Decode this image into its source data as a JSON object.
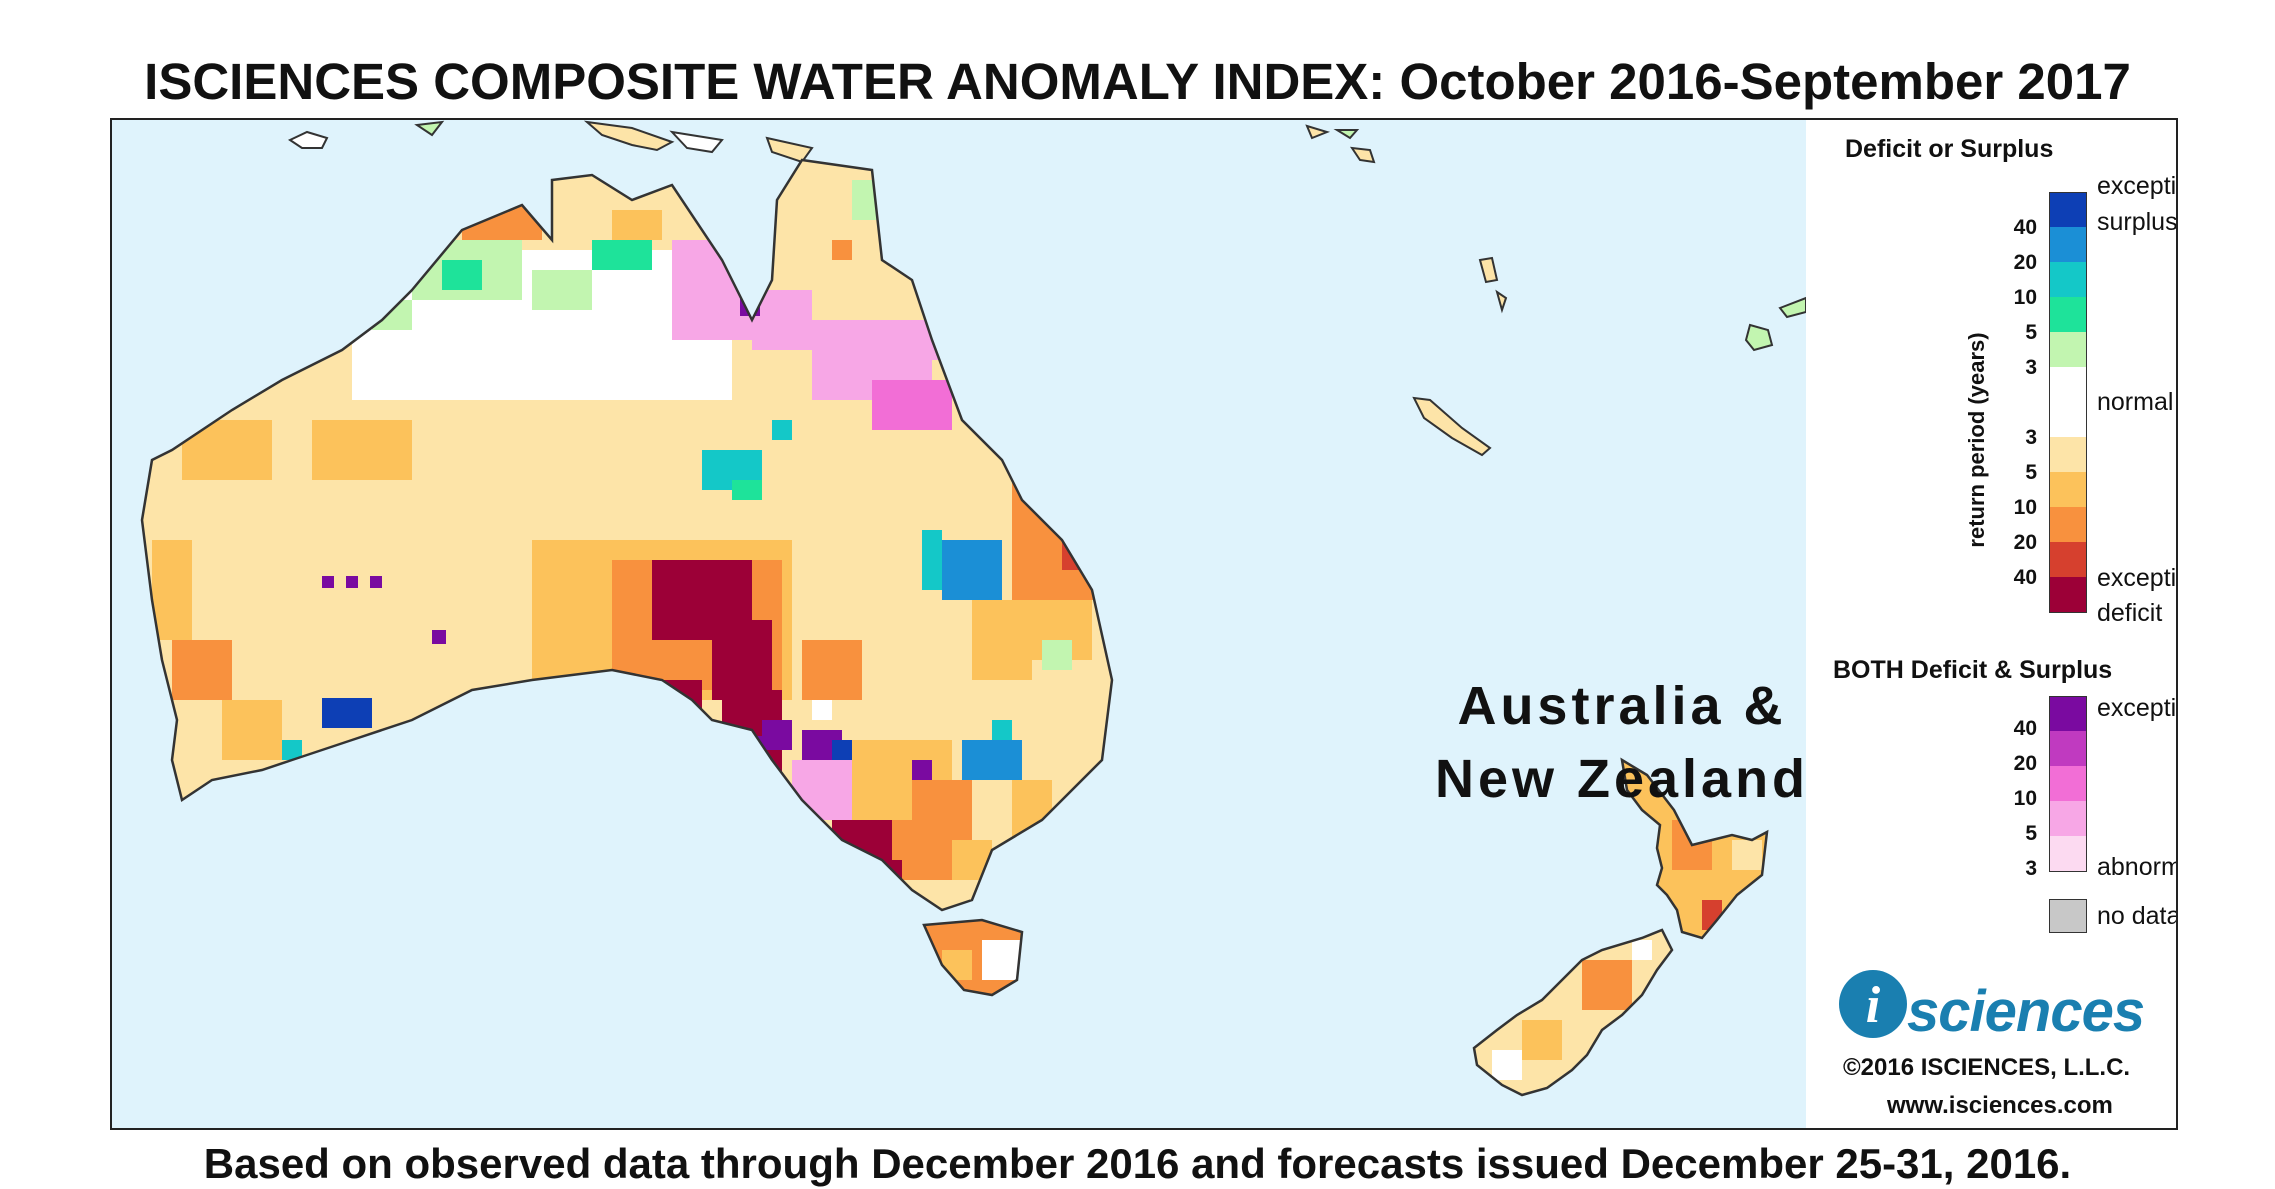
{
  "title": "ISCIENCES COMPOSITE WATER ANOMALY INDEX: October 2016-September 2017",
  "footer": "Based on observed data through December 2016 and forecasts issued December 25-31, 2016.",
  "map": {
    "region_label_line1": "Australia &",
    "region_label_line2": "New Zealand",
    "colors": {
      "ocean": "#dff3fc",
      "land_base": "#fde4a8",
      "coast": "#333333"
    }
  },
  "legend": {
    "deficit_surplus": {
      "heading": "Deficit or Surplus",
      "axis_label": "return period (years)",
      "label_exceptional_surplus_1": "exceptional",
      "label_exceptional_surplus_2": "surplus",
      "label_normal": "normal",
      "label_exceptional_deficit_1": "exceptional",
      "label_exceptional_deficit_2": "deficit",
      "surplus_ticks": [
        "40",
        "20",
        "10",
        "5",
        "3"
      ],
      "deficit_ticks": [
        "3",
        "5",
        "10",
        "20",
        "40"
      ],
      "colors": [
        "#0d3fb5",
        "#1b8fd6",
        "#14c8c8",
        "#1ee39a",
        "#c2f5b0",
        "#ffffff",
        "#fde4a8",
        "#fcc25b",
        "#f8913e",
        "#d6402e",
        "#9c0037"
      ]
    },
    "both": {
      "heading": "BOTH Deficit & Surplus",
      "label_exceptional": "exceptional",
      "label_abnormal": "abnormal",
      "ticks": [
        "40",
        "20",
        "10",
        "5",
        "3"
      ],
      "colors": [
        "#7a0aa0",
        "#c03ac0",
        "#f26ed6",
        "#f7a7e6",
        "#fcdaf1"
      ]
    },
    "no_data": {
      "label": "no data",
      "color": "#c8c8c8"
    }
  },
  "branding": {
    "logo_letter": "i",
    "logo_word": "sciences",
    "copyright": "©2016 ISCIENCES, L.L.C.",
    "website": "www.isciences.com"
  }
}
